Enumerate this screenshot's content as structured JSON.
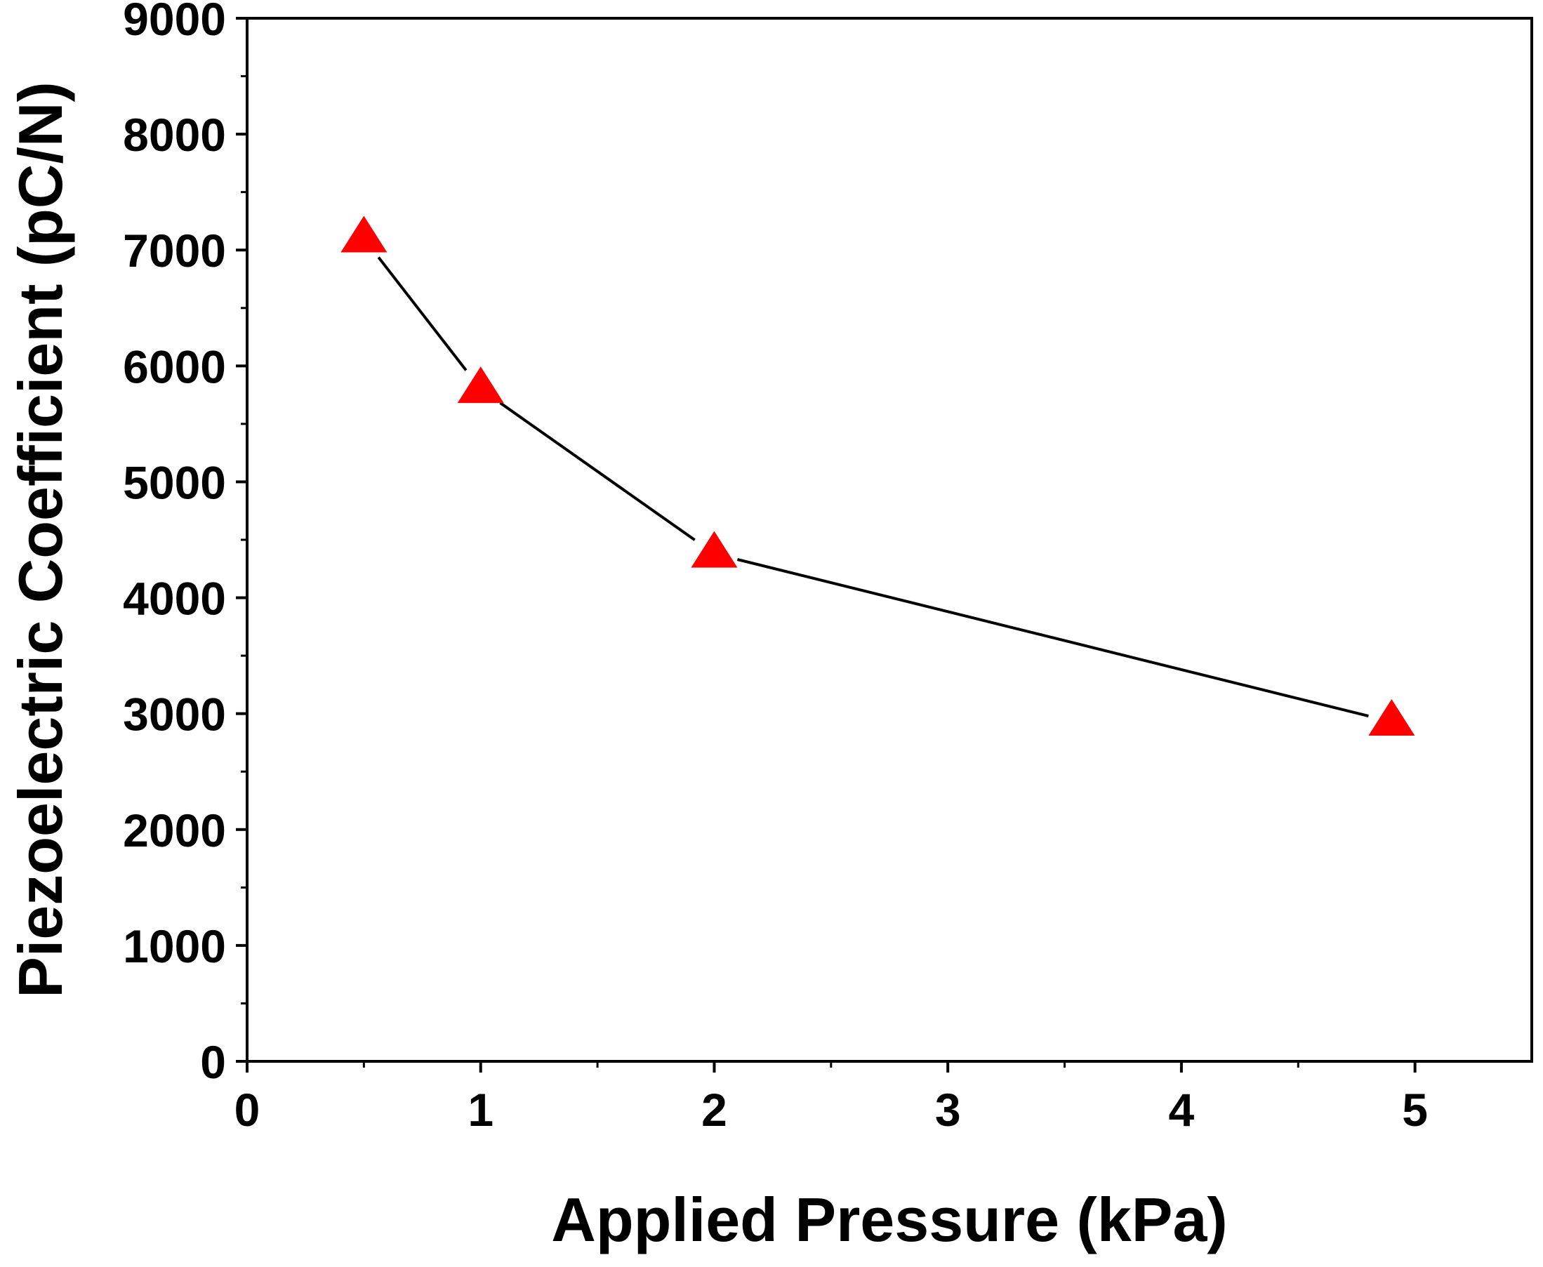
{
  "chart_data": {
    "type": "line",
    "title": "",
    "xlabel": "Applied Pressure (kPa)",
    "ylabel": "Piezoelectric Coefficient (pC/N)",
    "xlim": [
      0,
      5.5
    ],
    "ylim": [
      0,
      9000
    ],
    "x_ticks": [
      "0",
      "1",
      "2",
      "3",
      "4",
      "5"
    ],
    "y_ticks": [
      "0",
      "1000",
      "2000",
      "3000",
      "4000",
      "5000",
      "6000",
      "7000",
      "8000",
      "9000"
    ],
    "series": [
      {
        "name": "Piezoelectric Coefficient",
        "marker": "triangle",
        "color": "#ff0000",
        "line_color": "#000000",
        "x": [
          0.5,
          1.0,
          2.0,
          4.9
        ],
        "y": [
          7100,
          5800,
          4380,
          2930
        ]
      }
    ]
  }
}
